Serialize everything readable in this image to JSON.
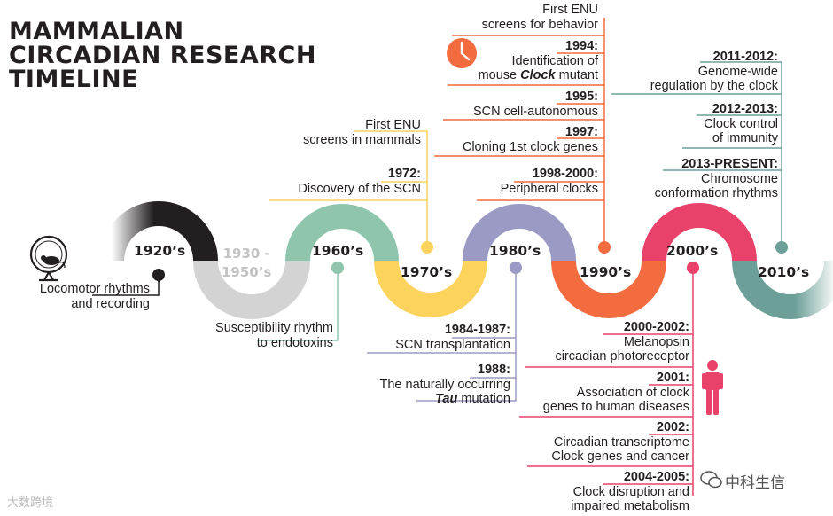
{
  "title": {
    "line1": "MAMMALIAN",
    "line2": "CIRCADIAN RESEARCH",
    "line3": "TIMELINE"
  },
  "colors": {
    "d1920": "#231f20",
    "d1930": "#d3d3d3",
    "d1960": "#8fc5ad",
    "d1970": "#fcd35d",
    "d1980": "#9a9ac4",
    "d1990": "#f26c3f",
    "d2000": "#e8426a",
    "d2010": "#6c9f98",
    "text": "#231f20"
  },
  "decades": {
    "d1920": "1920’s",
    "d1930_line1": "1930 -",
    "d1930_line2": "1950’s",
    "d1960": "1960’s",
    "d1970": "1970’s",
    "d1980": "1980’s",
    "d1990": "1990’s",
    "d2000": "2000’s",
    "d2010": "2010’s"
  },
  "events": {
    "e1920_line1": "Locomotor rhythms",
    "e1920_line2": "and recording",
    "e1960_line1": "Susceptibility rhythm",
    "e1960_line2": "to endotoxins",
    "e1970a_line1": "First ENU",
    "e1970a_line2": "screens in mammals",
    "e1972_year": "1972:",
    "e1972_text": "Discovery of the SCN",
    "e1984_year": "1984-1987:",
    "e1984_text": "SCN transplantation",
    "e1988_year": "1988:",
    "e1988_line1": "The naturally occurring",
    "e1988_tau": "Tau",
    "e1988_line2rest": " mutation",
    "e1990a_line1": "First ENU",
    "e1990a_line2": "screens for behavior",
    "e1994_year": "1994:",
    "e1994_line1": "Identification of",
    "e1994_pre": "mouse ",
    "e1994_clock": "Clock",
    "e1994_post": " mutant",
    "e1995_year": "1995:",
    "e1995_text": "SCN cell-autonomous",
    "e1997_year": "1997:",
    "e1997_text": "Cloning 1st clock genes",
    "e1998_year": "1998-2000:",
    "e1998_text": "Peripheral clocks",
    "e2000_year": "2000-2002:",
    "e2000_line1": "Melanopsin",
    "e2000_line2": "circadian photoreceptor",
    "e2001_year": "2001:",
    "e2001_line1": "Association of clock",
    "e2001_line2": "genes to human diseases",
    "e2002_year": "2002:",
    "e2002_line1": "Circadian transcriptome",
    "e2002_line2": "Clock genes and cancer",
    "e2004_year": "2004-2005:",
    "e2004_line1": "Clock disruption and",
    "e2004_line2": "impaired metabolism",
    "e2011_year": "2011-2012:",
    "e2011_line1": "Genome-wide",
    "e2011_line2": "regulation by the clock",
    "e2012_year": "2012-2013:",
    "e2012_line1": "Clock control",
    "e2012_line2": "of immunity",
    "e2013_year": "2013-PRESENT:",
    "e2013_line1": "Chromosome",
    "e2013_line2": "conformation rhythms"
  },
  "icons": {
    "mouse_wheel": "mouse-running-wheel-icon",
    "clock": "clock-icon",
    "person": "person-icon"
  },
  "watermarks": {
    "left": "大数跨境",
    "right": "中科生信"
  }
}
